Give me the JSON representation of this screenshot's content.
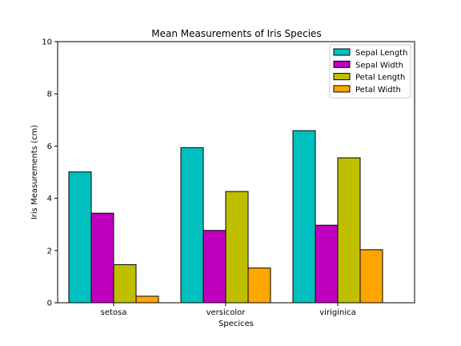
{
  "chart_data": {
    "type": "bar",
    "title": "Mean Measurements of Iris Species",
    "xlabel": "Specices",
    "ylabel": "Iris Measurements (cm)",
    "categories": [
      "setosa",
      "versicolor",
      "viriginica"
    ],
    "ylim": [
      0,
      10
    ],
    "yticks": [
      "0",
      "2",
      "4",
      "6",
      "8",
      "10"
    ],
    "grid": false,
    "legend_position": "top-right",
    "series": [
      {
        "name": "Sepal Length",
        "color": "#00bfbf",
        "values": [
          5.01,
          5.94,
          6.59
        ]
      },
      {
        "name": "Sepal Width",
        "color": "#bf00bf",
        "values": [
          3.43,
          2.77,
          2.97
        ]
      },
      {
        "name": "Petal Length",
        "color": "#bfbf00",
        "values": [
          1.46,
          4.26,
          5.55
        ]
      },
      {
        "name": "Petal Width",
        "color": "#ffa500",
        "values": [
          0.25,
          1.33,
          2.03
        ]
      }
    ]
  }
}
